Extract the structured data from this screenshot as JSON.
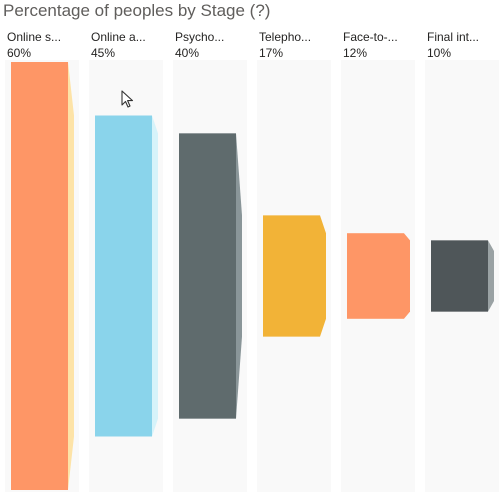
{
  "title": "Percentage of peoples by Stage (?)",
  "chart_data": {
    "type": "bar",
    "subtype": "funnel",
    "title": "Percentage of peoples by Stage (?)",
    "categories": [
      "Online s...",
      "Online a...",
      "Psycho...",
      "Telepho...",
      "Face-to-...",
      "Final int..."
    ],
    "values": [
      60,
      45,
      40,
      17,
      12,
      10
    ],
    "value_labels": [
      "60%",
      "45%",
      "40%",
      "17%",
      "12%",
      "10%"
    ],
    "unit": "%",
    "colors": [
      "#fe9666",
      "#8ad4eb",
      "#5f6b6d",
      "#f2b337",
      "#fe9666",
      "#4f5659"
    ],
    "connector_colors": [
      "#fde3a7",
      "#d6f3fa",
      "#8a9699",
      "#f2b337",
      "#fe9666",
      "#9aa2a4"
    ],
    "ylim": [
      0,
      60
    ]
  }
}
